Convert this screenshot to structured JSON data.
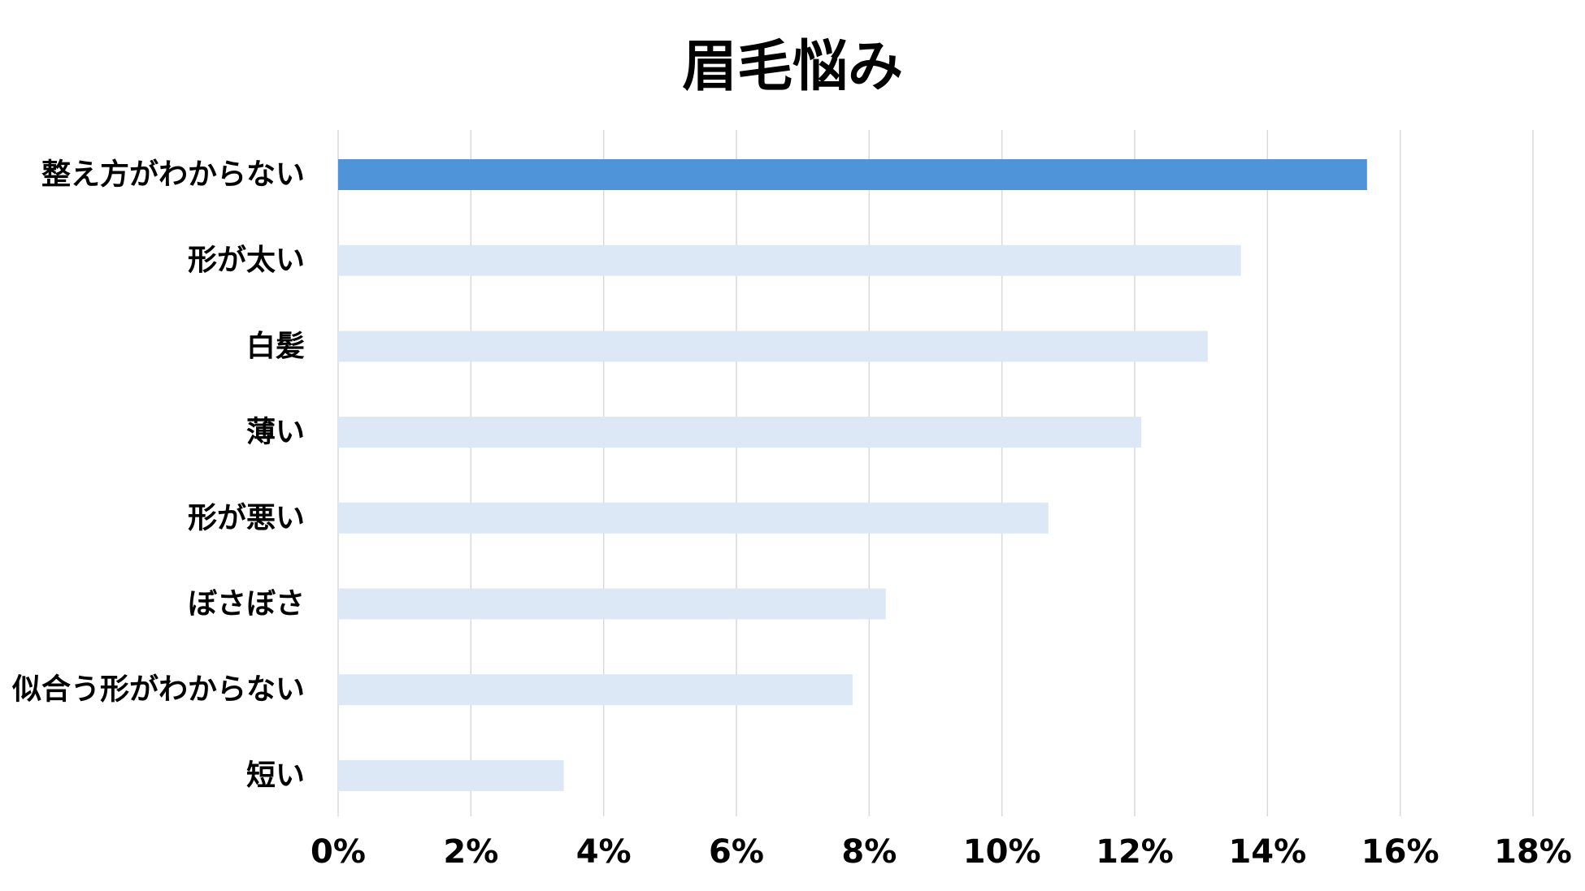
{
  "chart_data": {
    "type": "bar",
    "orientation": "horizontal",
    "title": "眉毛悩み",
    "xlabel": "",
    "ylabel": "",
    "categories": [
      "整え方がわからない",
      "形が太い",
      "白髪",
      "薄い",
      "形が悪い",
      "ぼさぼさ",
      "似合う形がわからない",
      "短い"
    ],
    "values": [
      15.5,
      13.6,
      13.1,
      12.1,
      10.7,
      8.25,
      7.75,
      3.4
    ],
    "x_ticks": [
      "0%",
      "2%",
      "4%",
      "6%",
      "8%",
      "10%",
      "12%",
      "14%",
      "16%",
      "18%"
    ],
    "xlim": [
      0,
      18
    ],
    "grid": "vertical",
    "legend": "none",
    "colors": {
      "highlight": "#4F94D9",
      "default": "#DCE8F6",
      "grid": "#D9D9D9"
    },
    "highlighted_index": 0
  }
}
